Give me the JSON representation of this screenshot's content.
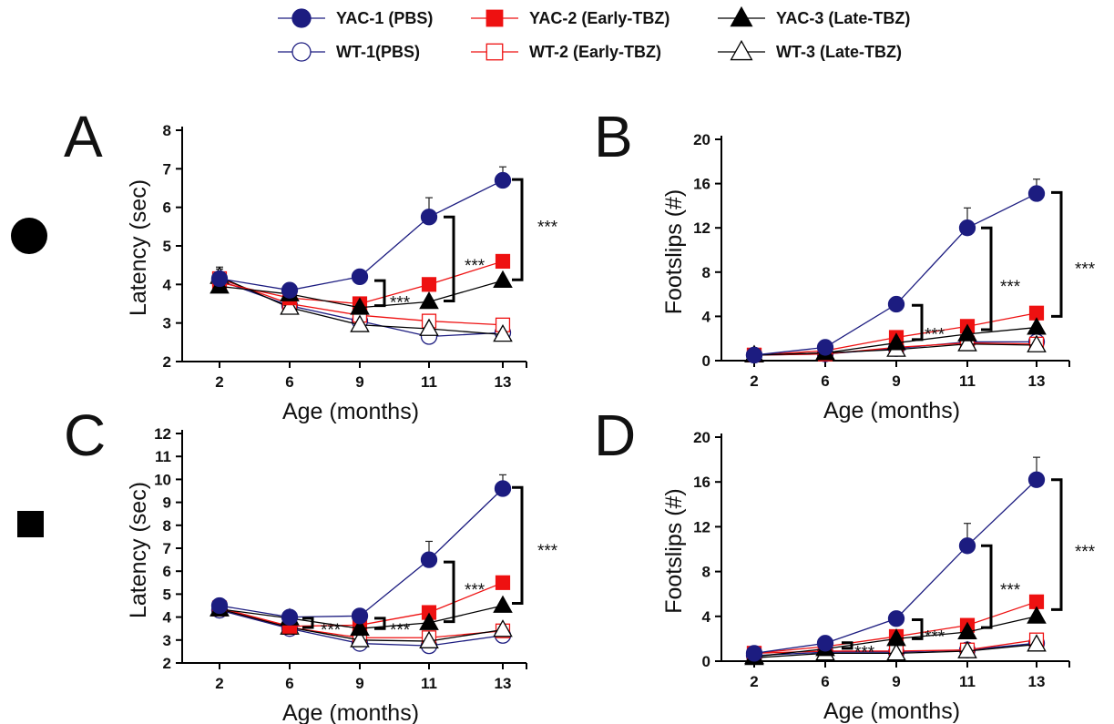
{
  "legend": {
    "entries": [
      {
        "id": "YAC1",
        "label": "YAC-1 (PBS)",
        "color": "#1c1c80",
        "marker": "circle",
        "filled": true
      },
      {
        "id": "YAC2",
        "label": "YAC-2 (Early-TBZ)",
        "color": "#ee1111",
        "marker": "square",
        "filled": true
      },
      {
        "id": "YAC3",
        "label": "YAC-3 (Late-TBZ)",
        "color": "#000000",
        "marker": "triangle",
        "filled": true
      },
      {
        "id": "WT1",
        "label": "WT-1(PBS)",
        "color": "#1c1c80",
        "marker": "circle",
        "filled": false
      },
      {
        "id": "WT2",
        "label": "WT-2 (Early-TBZ)",
        "color": "#ee1111",
        "marker": "square",
        "filled": false
      },
      {
        "id": "WT3",
        "label": "WT-3 (Late-TBZ)",
        "color": "#000000",
        "marker": "triangle",
        "filled": false
      }
    ]
  },
  "row_markers": [
    {
      "icon": "filled-circle-icon"
    },
    {
      "icon": "filled-square-icon"
    }
  ],
  "significance_label": "***",
  "chart_data": [
    {
      "panel": "A",
      "type": "line",
      "xlabel": "Age (months)",
      "ylabel": "Latency (sec)",
      "x": [
        2,
        6,
        9,
        11,
        13
      ],
      "ylim": [
        2,
        8
      ],
      "yticks": [
        2,
        3,
        4,
        5,
        6,
        7,
        8
      ],
      "series": [
        {
          "name": "YAC-1 (PBS)",
          "values": [
            4.15,
            3.85,
            4.2,
            5.75,
            6.7
          ],
          "err": [
            0.08,
            0.08,
            0.12,
            0.5,
            0.35
          ]
        },
        {
          "name": "YAC-2 (Early-TBZ)",
          "values": [
            4.05,
            3.65,
            3.5,
            4.0,
            4.6
          ],
          "err": [
            0,
            0,
            0,
            0,
            0
          ]
        },
        {
          "name": "YAC-3 (Late-TBZ)",
          "values": [
            3.95,
            3.75,
            3.4,
            3.55,
            4.1
          ],
          "err": [
            0,
            0,
            0,
            0,
            0
          ]
        },
        {
          "name": "WT-1(PBS)",
          "values": [
            4.1,
            3.45,
            3.05,
            2.65,
            2.75
          ],
          "err": [
            0,
            0,
            0,
            0,
            0
          ]
        },
        {
          "name": "WT-2 (Early-TBZ)",
          "values": [
            4.15,
            3.5,
            3.2,
            3.05,
            2.95
          ],
          "err": [
            0.3,
            0,
            0,
            0,
            0
          ]
        },
        {
          "name": "WT-3 (Late-TBZ)",
          "values": [
            4.2,
            3.4,
            2.95,
            2.85,
            2.7
          ],
          "err": [
            0.2,
            0,
            0,
            0,
            0
          ]
        }
      ]
    },
    {
      "panel": "B",
      "type": "line",
      "xlabel": "Age (months)",
      "ylabel": "Footslips (#)",
      "x": [
        2,
        6,
        9,
        11,
        13
      ],
      "ylim": [
        0,
        20
      ],
      "yticks": [
        0,
        4,
        8,
        12,
        16,
        20
      ],
      "series": [
        {
          "name": "YAC-1 (PBS)",
          "values": [
            0.5,
            1.2,
            5.1,
            12.0,
            15.1
          ],
          "err": [
            0,
            0,
            0.3,
            1.8,
            1.3
          ]
        },
        {
          "name": "YAC-2 (Early-TBZ)",
          "values": [
            0.5,
            0.9,
            2.1,
            3.1,
            4.3
          ],
          "err": [
            0,
            0,
            0,
            0,
            0
          ]
        },
        {
          "name": "YAC-3 (Late-TBZ)",
          "values": [
            0.5,
            0.7,
            1.6,
            2.4,
            3.0
          ],
          "err": [
            0,
            0,
            0,
            0,
            0
          ]
        },
        {
          "name": "WT-1(PBS)",
          "values": [
            0.5,
            0.6,
            1.1,
            1.7,
            1.7
          ],
          "err": [
            0,
            0,
            0,
            0,
            0
          ]
        },
        {
          "name": "WT-2 (Early-TBZ)",
          "values": [
            0.5,
            0.6,
            1.2,
            1.6,
            1.5
          ],
          "err": [
            0,
            0,
            0,
            0,
            0
          ]
        },
        {
          "name": "WT-3 (Late-TBZ)",
          "values": [
            0.5,
            0.7,
            1.0,
            1.5,
            1.4
          ],
          "err": [
            0,
            0,
            0,
            0,
            0
          ]
        }
      ]
    },
    {
      "panel": "C",
      "type": "line",
      "xlabel": "Age (months)",
      "ylabel": "Latency (sec)",
      "x": [
        2,
        6,
        9,
        11,
        13
      ],
      "ylim": [
        2,
        12
      ],
      "yticks": [
        2,
        3,
        4,
        5,
        6,
        7,
        8,
        9,
        10,
        11,
        12
      ],
      "series": [
        {
          "name": "YAC-1 (PBS)",
          "values": [
            4.5,
            4.0,
            4.05,
            6.5,
            9.6
          ],
          "err": [
            0,
            0,
            0,
            0.8,
            0.6
          ]
        },
        {
          "name": "YAC-2 (Early-TBZ)",
          "values": [
            4.4,
            3.6,
            3.65,
            4.2,
            5.5
          ],
          "err": [
            0,
            0,
            0,
            0,
            0
          ]
        },
        {
          "name": "YAC-3 (Late-TBZ)",
          "values": [
            4.35,
            3.95,
            3.5,
            3.75,
            4.5
          ],
          "err": [
            0,
            0,
            0,
            0,
            0
          ]
        },
        {
          "name": "WT-1(PBS)",
          "values": [
            4.3,
            3.5,
            2.85,
            2.75,
            3.2
          ],
          "err": [
            0,
            0,
            0,
            0,
            0
          ]
        },
        {
          "name": "WT-2 (Early-TBZ)",
          "values": [
            4.35,
            3.55,
            3.1,
            3.1,
            3.4
          ],
          "err": [
            0,
            0,
            0,
            0,
            0
          ]
        },
        {
          "name": "WT-3 (Late-TBZ)",
          "values": [
            4.35,
            3.55,
            3.0,
            2.95,
            3.45
          ],
          "err": [
            0,
            0,
            0,
            0,
            0
          ]
        }
      ]
    },
    {
      "panel": "D",
      "type": "line",
      "xlabel": "Age (months)",
      "ylabel": "Footslips (#)",
      "x": [
        2,
        6,
        9,
        11,
        13
      ],
      "ylim": [
        0,
        20
      ],
      "yticks": [
        0,
        4,
        8,
        12,
        16,
        20
      ],
      "series": [
        {
          "name": "YAC-1 (PBS)",
          "values": [
            0.7,
            1.6,
            3.8,
            10.3,
            16.2
          ],
          "err": [
            0,
            0,
            0,
            2.0,
            2.0
          ]
        },
        {
          "name": "YAC-2 (Early-TBZ)",
          "values": [
            0.7,
            1.3,
            2.2,
            3.2,
            5.3
          ],
          "err": [
            0,
            0,
            0,
            0,
            0
          ]
        },
        {
          "name": "YAC-3 (Late-TBZ)",
          "values": [
            0.4,
            1.1,
            2.0,
            2.6,
            4.0
          ],
          "err": [
            0,
            0,
            0,
            0,
            0
          ]
        },
        {
          "name": "WT-1(PBS)",
          "values": [
            0.5,
            0.8,
            0.8,
            1.0,
            1.6
          ],
          "err": [
            0,
            0,
            0,
            0,
            0
          ]
        },
        {
          "name": "WT-2 (Early-TBZ)",
          "values": [
            0.7,
            0.9,
            0.9,
            1.0,
            1.9
          ],
          "err": [
            0,
            0,
            0,
            0,
            0
          ]
        },
        {
          "name": "WT-3 (Late-TBZ)",
          "values": [
            0.3,
            0.7,
            0.7,
            0.9,
            1.5
          ],
          "err": [
            0,
            0,
            0,
            0,
            0
          ]
        }
      ]
    }
  ]
}
